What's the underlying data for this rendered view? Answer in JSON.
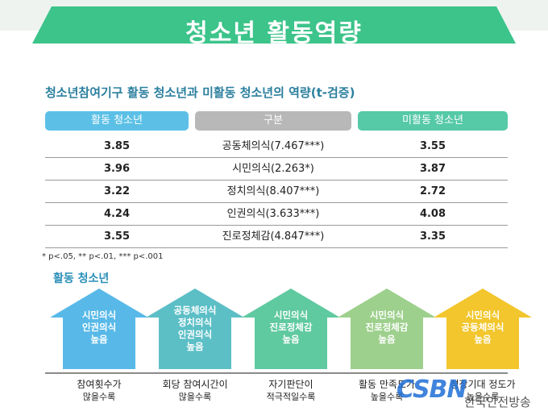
{
  "title": "청소년 활동역량",
  "subtitle": "청소년참여기구 활동 청소년과 미활동 청소년의 역량(t-검증)",
  "table": {
    "headers": {
      "active": "활동 청소년",
      "category": "구분",
      "inactive": "미활동 청소년"
    },
    "rows": [
      {
        "active": "3.85",
        "category": "공동체의식(7.467***)",
        "inactive": "3.55"
      },
      {
        "active": "3.96",
        "category": "시민의식(2.263*)",
        "inactive": "3.87"
      },
      {
        "active": "3.22",
        "category": "정치의식(8.407***)",
        "inactive": "2.72"
      },
      {
        "active": "4.24",
        "category": "인권의식(3.633***)",
        "inactive": "4.08"
      },
      {
        "active": "3.55",
        "category": "진로정체감(4.847***)",
        "inactive": "3.35"
      }
    ],
    "footnote": "* p<.05, ** p<.01, *** p<.001"
  },
  "section": {
    "title": "활동 청소년",
    "arrows": [
      {
        "lines": [
          "시민의식",
          "인권의식",
          "높음"
        ],
        "cond1": "참여횟수가",
        "cond2": "많을수록",
        "color": "#58b9e8"
      },
      {
        "lines": [
          "공동체의식",
          "정치의식",
          "인권의식",
          "높음"
        ],
        "cond1": "회당 참여시간이",
        "cond2": "많을수록",
        "color": "#5cbfc6"
      },
      {
        "lines": [
          "시민의식",
          "진로정체감",
          "높음"
        ],
        "cond1": "자기판단이",
        "cond2": "적극적일수록",
        "color": "#5fc9a0"
      },
      {
        "lines": [
          "시민의식",
          "진로정체감",
          "높음"
        ],
        "cond1": "활동 만족도가",
        "cond2": "높을수록",
        "color": "#9dd08c"
      },
      {
        "lines": [
          "시민의식",
          "공동체의식",
          "높음"
        ],
        "cond1": "성장기대 정도가",
        "cond2": "높을수록",
        "color": "#f2c62c"
      }
    ]
  },
  "watermark": {
    "logo": "CSBN",
    "text": "한국안전방송"
  }
}
